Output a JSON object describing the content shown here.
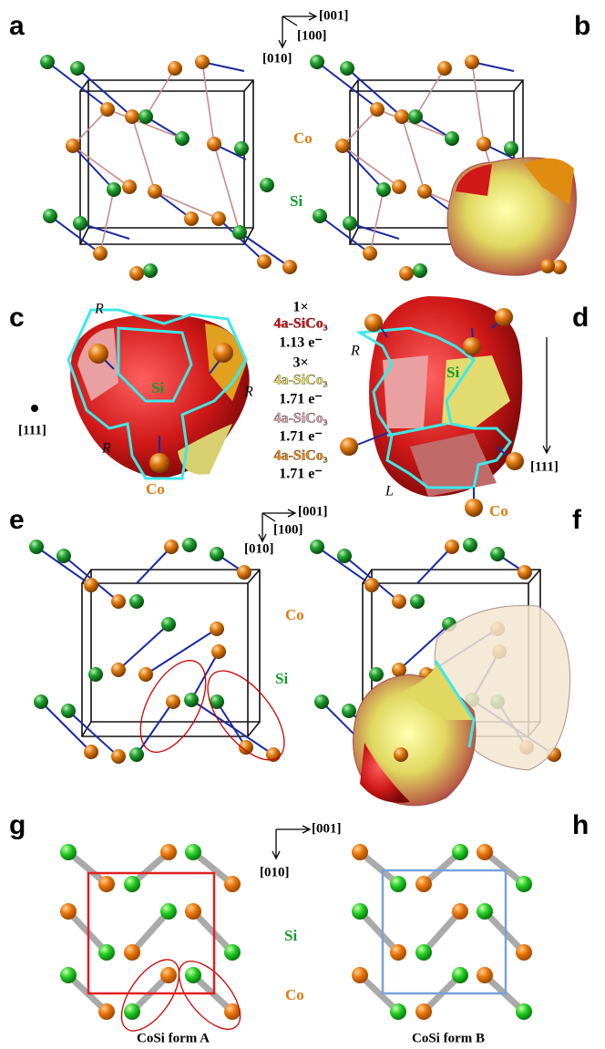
{
  "panel_labels": [
    "a",
    "b",
    "c",
    "d",
    "e",
    "f",
    "g",
    "h"
  ],
  "axes": [
    {
      "x": "[001]",
      "z": "[100]",
      "y": "[010]"
    },
    {
      "x": "[001]",
      "z": "[100]",
      "y": "[010]"
    },
    {
      "x": "[001]",
      "y": "[010]"
    }
  ],
  "species_labels": [
    {
      "co": "Co",
      "si": "Si"
    },
    {
      "co": "Co",
      "si": "Si"
    },
    {
      "si": "Si",
      "co": "Co"
    }
  ],
  "panel_c": {
    "labels": [
      "R",
      "R",
      "R"
    ],
    "si": "Si",
    "co": "Co",
    "direction": "[111]"
  },
  "panel_d": {
    "labels": [
      "R",
      "L"
    ],
    "si": "Si",
    "co": "Co",
    "direction": "[111]"
  },
  "charge_list": [
    {
      "text": "1×",
      "color": "#000000"
    },
    {
      "text": "4a-SiCo₃",
      "color": "#e0101a"
    },
    {
      "text": "1.13 e⁻",
      "color": "#000000"
    },
    {
      "text": "3×",
      "color": "#000000"
    },
    {
      "text": "4a-SiCo₃",
      "color": "#e8e060"
    },
    {
      "text": "1.71 e⁻",
      "color": "#000000"
    },
    {
      "text": "4a-SiCo₃",
      "color": "#e2a6b0"
    },
    {
      "text": "1.71 e⁻",
      "color": "#000000"
    },
    {
      "text": "4a-SiCo₃",
      "color": "#f08a10"
    },
    {
      "text": "1.71 e⁻",
      "color": "#000000"
    }
  ],
  "captions": [
    "CoSi form A",
    "CoSi form B"
  ]
}
